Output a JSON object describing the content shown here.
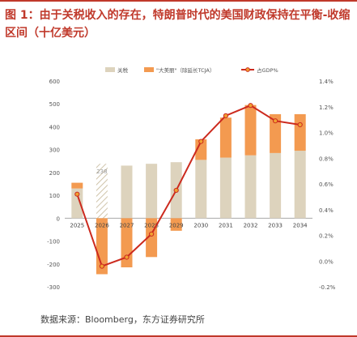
{
  "title": "图 1：由于关税收入的存在，特朗普时代的美国财政保持在平衡-收缩区间（十亿美元）",
  "source": "数据来源：Bloomberg，东方证券研究所",
  "chart_data": {
    "type": "bar",
    "categories": [
      "2025",
      "2026",
      "2027",
      "2028",
      "2029",
      "2030",
      "2031",
      "2032",
      "2033",
      "2034"
    ],
    "series": [
      {
        "name": "关税",
        "axis": "left",
        "color": "#ddd3bd",
        "values": [
          130,
          238,
          230,
          238,
          245,
          255,
          265,
          275,
          285,
          295
        ]
      },
      {
        "name": "\"大美丽\"（除延长TCJA）",
        "axis": "left",
        "color": "#f39a50",
        "values": [
          25,
          -245,
          -215,
          -170,
          -55,
          90,
          175,
          220,
          170,
          160
        ]
      },
      {
        "name": "占GDP%",
        "axis": "right",
        "type": "line",
        "color": "#cc2a1e",
        "values": [
          0.52,
          -0.04,
          0.03,
          0.21,
          0.55,
          0.93,
          1.13,
          1.21,
          1.09,
          1.06
        ]
      }
    ],
    "hatched_bar": {
      "category": "2026",
      "series": "关税"
    },
    "data_labels": [
      {
        "category": "2026",
        "text": "238"
      }
    ],
    "ylim_left": [
      -300,
      600
    ],
    "yticks_left": [
      "600",
      "500",
      "400",
      "300",
      "200",
      "100",
      "0",
      "-100",
      "-200",
      "-300"
    ],
    "ylim_right": [
      -0.2,
      1.4
    ],
    "yticks_right": [
      "1.4%",
      "1.2%",
      "1.0%",
      "0.8%",
      "0.6%",
      "0.4%",
      "0.2%",
      "0.0%",
      "-0.2%"
    ],
    "legend_position": "top"
  }
}
